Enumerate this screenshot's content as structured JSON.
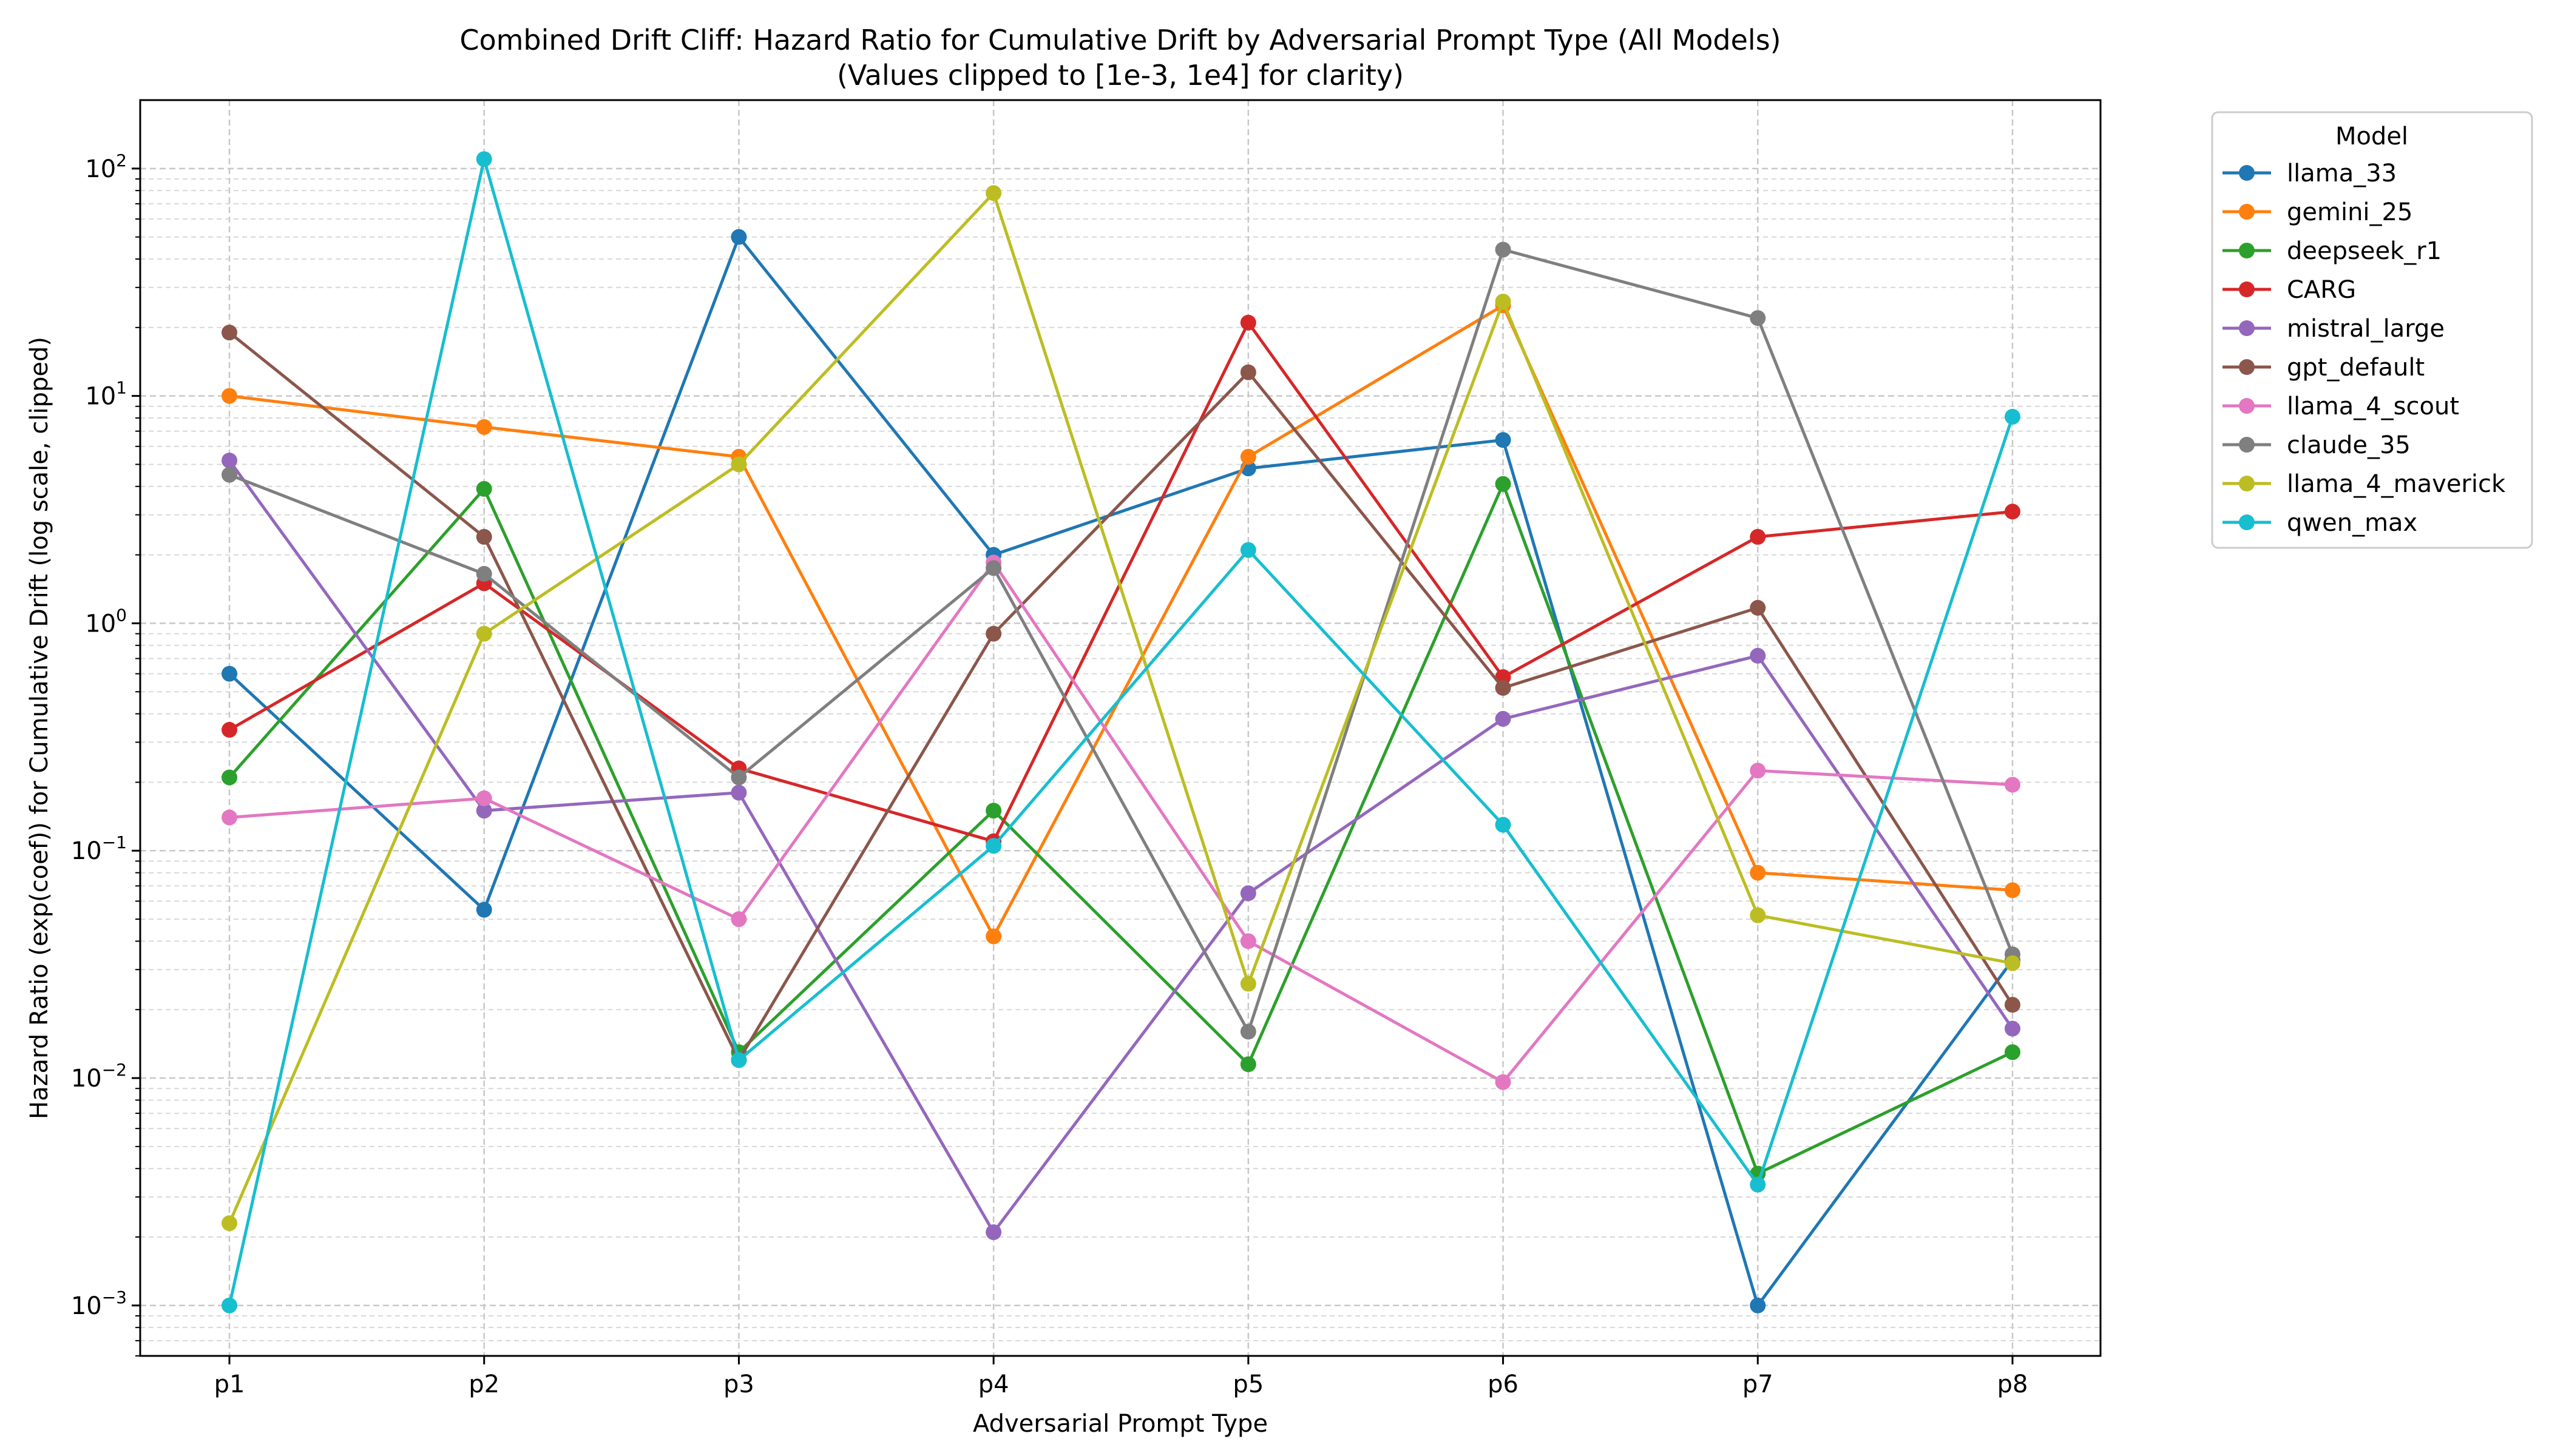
{
  "chart_data": {
    "type": "line",
    "title": "Combined Drift Cliff: Hazard Ratio for Cumulative Drift by Adversarial Prompt Type (All Models)",
    "subtitle": "(Values clipped to [1e-3, 1e4] for clarity)",
    "xlabel": "Adversarial Prompt Type",
    "ylabel": "Hazard Ratio (exp(coef)) for Cumulative Drift (log scale, clipped)",
    "yscale": "log",
    "ylim": [
      0.0006,
      200
    ],
    "grid": true,
    "legend_title": "Model",
    "legend_position": "outside-right",
    "categories": [
      "p1",
      "p2",
      "p3",
      "p4",
      "p5",
      "p6",
      "p7",
      "p8"
    ],
    "y_ticks": [
      {
        "value": 0.001,
        "base": "10",
        "exp": "−3"
      },
      {
        "value": 0.01,
        "base": "10",
        "exp": "−2"
      },
      {
        "value": 0.1,
        "base": "10",
        "exp": "−1"
      },
      {
        "value": 1,
        "base": "10",
        "exp": "0"
      },
      {
        "value": 10,
        "base": "10",
        "exp": "1"
      },
      {
        "value": 100,
        "base": "10",
        "exp": "2"
      }
    ],
    "series": [
      {
        "name": "llama_33",
        "color": "#1f77b4",
        "values": [
          0.6,
          0.055,
          50,
          2.0,
          4.8,
          6.4,
          0.001,
          0.033
        ]
      },
      {
        "name": "gemini_25",
        "color": "#ff7f0e",
        "values": [
          10,
          7.3,
          5.4,
          0.042,
          5.4,
          25,
          0.08,
          0.067
        ]
      },
      {
        "name": "deepseek_r1",
        "color": "#2ca02c",
        "values": [
          0.21,
          3.9,
          0.013,
          0.15,
          0.0115,
          4.1,
          0.0038,
          0.013
        ]
      },
      {
        "name": "CARG",
        "color": "#d62728",
        "values": [
          0.34,
          1.5,
          0.23,
          0.11,
          21,
          0.58,
          2.4,
          3.1
        ]
      },
      {
        "name": "mistral_large",
        "color": "#9467bd",
        "values": [
          5.2,
          0.15,
          0.18,
          0.0021,
          0.065,
          0.38,
          0.72,
          0.0165
        ]
      },
      {
        "name": "gpt_default",
        "color": "#8c564b",
        "values": [
          19,
          2.4,
          0.012,
          0.9,
          12.7,
          0.52,
          1.17,
          0.021
        ]
      },
      {
        "name": "llama_4_scout",
        "color": "#e377c2",
        "values": [
          0.14,
          0.17,
          0.05,
          1.85,
          0.04,
          0.0096,
          0.225,
          0.195
        ]
      },
      {
        "name": "claude_35",
        "color": "#7f7f7f",
        "values": [
          4.5,
          1.65,
          0.21,
          1.75,
          0.016,
          44,
          22,
          0.035
        ]
      },
      {
        "name": "llama_4_maverick",
        "color": "#bcbd22",
        "values": [
          0.0023,
          0.9,
          5.0,
          78,
          0.026,
          26,
          0.052,
          0.032
        ]
      },
      {
        "name": "qwen_max",
        "color": "#17becf",
        "values": [
          0.001,
          110,
          0.012,
          0.105,
          2.1,
          0.13,
          0.0034,
          8.1
        ]
      }
    ]
  }
}
